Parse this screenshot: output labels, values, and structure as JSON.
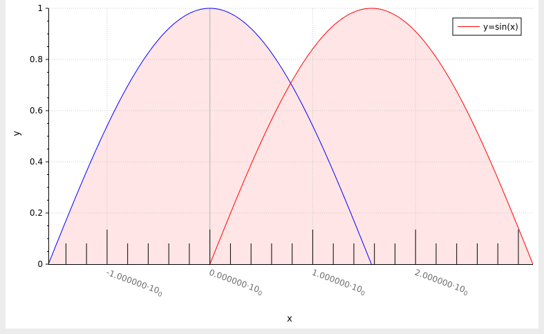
{
  "chart_data": {
    "type": "line",
    "xlabel": "x",
    "ylabel": "y",
    "xlim": [
      -1.5708,
      3.14159
    ],
    "ylim": [
      0,
      1
    ],
    "grid": true,
    "legend_position": "top-right",
    "y_ticks": [
      "0",
      "0.2",
      "0.4",
      "0.6",
      "0.8",
      "1"
    ],
    "y_tick_values": [
      0,
      0.2,
      0.4,
      0.6,
      0.8,
      1
    ],
    "x_major_ticks": [
      {
        "value": -1,
        "mantissa": "-1.000000·10",
        "exponent": "0"
      },
      {
        "value": 0,
        "mantissa": "0.000000·10",
        "exponent": "0"
      },
      {
        "value": 1,
        "mantissa": "1.000000·10",
        "exponent": "0"
      },
      {
        "value": 2,
        "mantissa": "2.000000·10",
        "exponent": "0"
      }
    ],
    "series": [
      {
        "function": "cos(x)",
        "x_range": [
          -1.5708,
          1.5708
        ],
        "color": "#0000ff",
        "fill": "#ffe5e5"
      },
      {
        "name": "y=sin(x)",
        "function": "sin(x)",
        "x_range": [
          0,
          3.14159
        ],
        "color": "#ff0000",
        "fill": "#ffe5e5"
      }
    ],
    "reference_line_x": 0
  }
}
